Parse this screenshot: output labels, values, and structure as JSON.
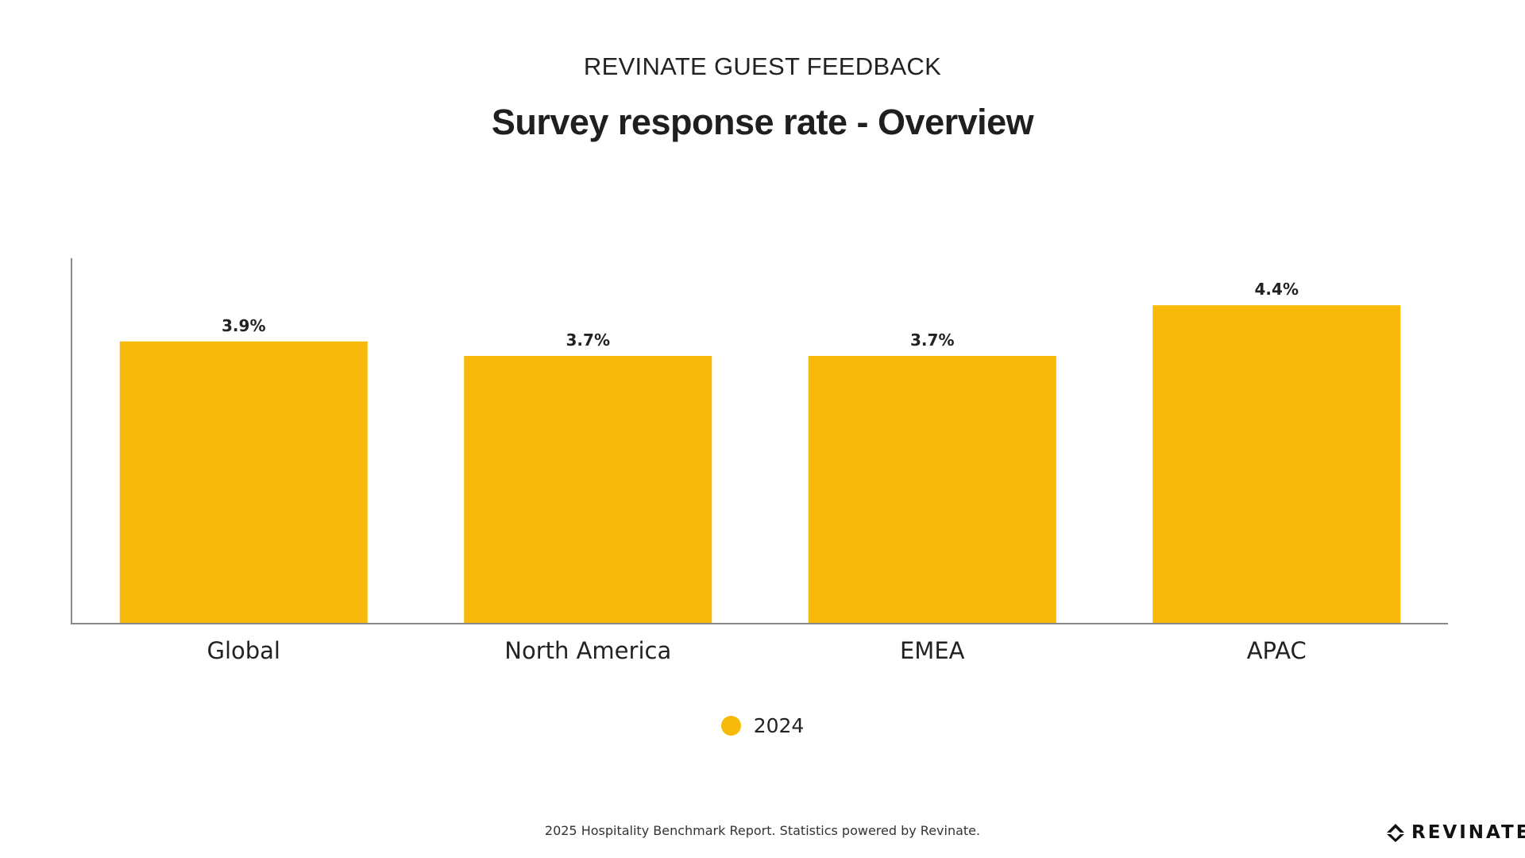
{
  "header": {
    "eyebrow": "REVINATE GUEST FEEDBACK",
    "title": "Survey response rate - Overview"
  },
  "chart_data": {
    "type": "bar",
    "categories": [
      "Global",
      "North America",
      "EMEA",
      "APAC"
    ],
    "series": [
      {
        "name": "2024",
        "values": [
          3.9,
          3.7,
          3.7,
          4.4
        ],
        "labels": [
          "3.9%",
          "3.7%",
          "3.7%",
          "4.4%"
        ],
        "color": "#F7B90A"
      }
    ],
    "ylim": [
      0,
      5.05
    ],
    "grid": false,
    "legend": "bottom-center",
    "axis_color": "#888888"
  },
  "legend": {
    "label": "2024",
    "color": "#F7B90A"
  },
  "footer": {
    "text": "2025 Hospitality Benchmark Report. Statistics powered by Revinate."
  },
  "logo": {
    "wordmark": "REVINATE",
    "icon": "revinate-logo-icon"
  }
}
